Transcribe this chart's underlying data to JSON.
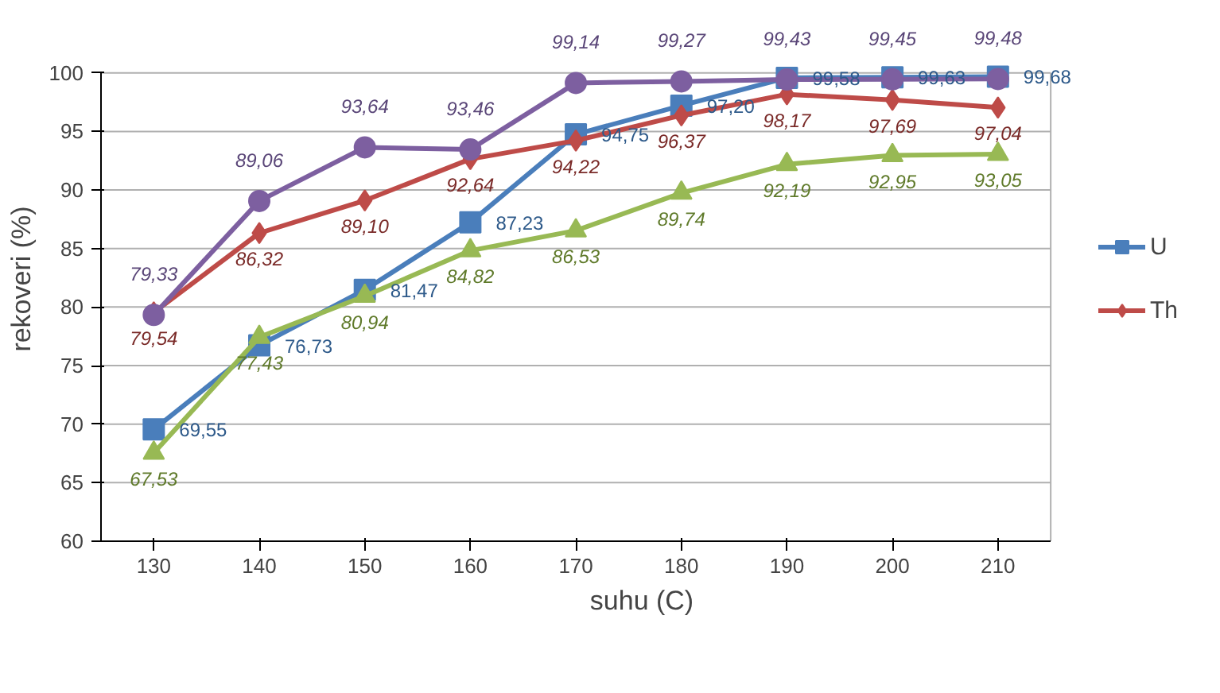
{
  "chart_data": {
    "type": "line",
    "xlabel": "suhu (C)",
    "ylabel": "rekoveri (%)",
    "categories": [
      "130",
      "140",
      "150",
      "160",
      "170",
      "180",
      "190",
      "200",
      "210"
    ],
    "ylim": [
      60,
      100
    ],
    "yticks": [
      60,
      65,
      70,
      75,
      80,
      85,
      90,
      95,
      100
    ],
    "grid": "y",
    "legend": "right",
    "series": [
      {
        "name": "U",
        "color": "#4a7ebb",
        "marker": "square",
        "values": [
          69.55,
          76.73,
          81.47,
          87.23,
          94.75,
          97.2,
          99.58,
          99.63,
          99.68
        ],
        "value_labels": [
          "69,55",
          "76,73",
          "81,47",
          "87,23",
          "94,75",
          "97,20",
          "99,58",
          "99,63",
          "99,68"
        ]
      },
      {
        "name": "Th",
        "color": "#be4b48",
        "marker": "diamond",
        "values": [
          79.54,
          86.32,
          89.1,
          92.64,
          94.22,
          96.37,
          98.17,
          97.69,
          97.04
        ],
        "value_labels": [
          "79,54",
          "86,32",
          "89,10",
          "92,64",
          "94,22",
          "96,37",
          "98,17",
          "97,69",
          "97,04"
        ]
      },
      {
        "color": "#7d5fa0",
        "marker": "circle",
        "values": [
          79.33,
          89.06,
          93.64,
          93.46,
          99.14,
          99.27,
          99.43,
          99.45,
          99.48
        ],
        "value_labels": [
          "79,33",
          "89,06",
          "93,64",
          "93,46",
          "99,14",
          "99,27",
          "99,43",
          "99,45",
          "99,48"
        ]
      },
      {
        "color": "#98b954",
        "marker": "triangle",
        "values": [
          67.53,
          77.43,
          80.94,
          84.82,
          86.53,
          89.74,
          92.19,
          92.95,
          93.05
        ],
        "value_labels": [
          "67,53",
          "77,43",
          "80,94",
          "84,82",
          "86,53",
          "89,74",
          "92,19",
          "92,95",
          "93,05"
        ]
      }
    ]
  }
}
